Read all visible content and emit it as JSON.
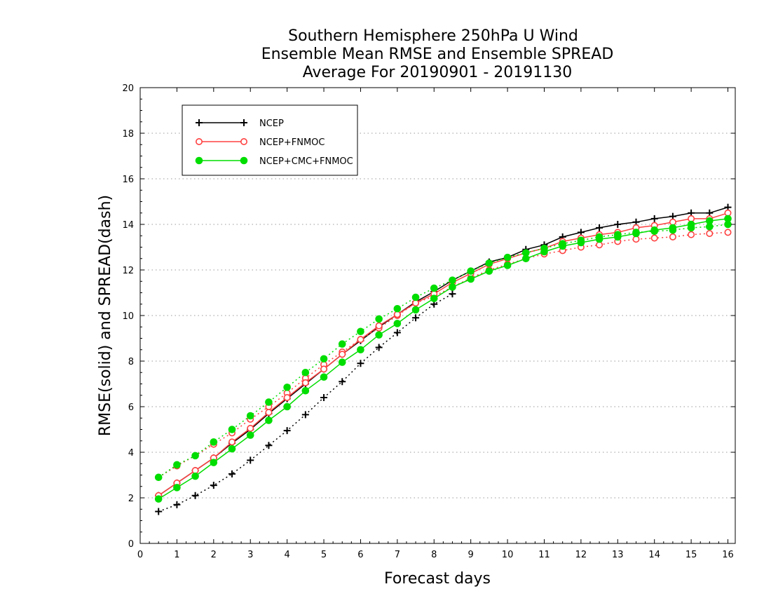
{
  "chart_data": {
    "type": "line",
    "title": [
      "Southern Hemisphere 250hPa U Wind",
      "Ensemble Mean RMSE and Ensemble SPREAD",
      "Average For 20190901 - 20191130"
    ],
    "xlabel": "Forecast days",
    "ylabel": "RMSE(solid) and SPREAD(dash)",
    "xlim": [
      0,
      16.2
    ],
    "ylim": [
      0,
      20
    ],
    "xticks": [
      0,
      1,
      2,
      3,
      4,
      5,
      6,
      7,
      8,
      9,
      10,
      11,
      12,
      13,
      14,
      15,
      16
    ],
    "yticks": [
      0,
      2,
      4,
      6,
      8,
      10,
      12,
      14,
      16,
      18,
      20
    ],
    "grid": "horizontal dotted",
    "legend_position": "top-left",
    "x": [
      0.5,
      1,
      1.5,
      2,
      2.5,
      3,
      3.5,
      4,
      4.5,
      5,
      5.5,
      6,
      6.5,
      7,
      7.5,
      8,
      8.5,
      9,
      9.5,
      10,
      10.5,
      11,
      11.5,
      12,
      12.5,
      13,
      13.5,
      14,
      14.5,
      15,
      15.5,
      16
    ],
    "series": [
      {
        "name": "NCEP",
        "color": "#000000",
        "marker": "plus",
        "rmse": [
          2.1,
          2.65,
          3.2,
          3.75,
          4.4,
          5.0,
          5.7,
          6.35,
          7.0,
          7.65,
          8.3,
          8.9,
          9.5,
          10.05,
          10.6,
          11.05,
          11.55,
          11.95,
          12.35,
          12.55,
          12.9,
          13.1,
          13.45,
          13.65,
          13.85,
          14.0,
          14.1,
          14.25,
          14.35,
          14.5,
          14.5,
          14.75
        ],
        "spread": [
          1.4,
          1.7,
          2.1,
          2.55,
          3.05,
          3.65,
          4.3,
          4.95,
          5.65,
          6.4,
          7.1,
          7.9,
          8.6,
          9.25,
          9.9,
          10.5,
          10.95,
          null,
          null,
          null,
          null,
          null,
          null,
          null,
          null,
          null,
          null,
          null,
          null,
          null,
          null,
          null
        ]
      },
      {
        "name": "NCEP+FNMOC",
        "color": "#ff4040",
        "marker": "open-circle",
        "rmse": [
          2.1,
          2.65,
          3.2,
          3.75,
          4.45,
          5.05,
          5.75,
          6.4,
          7.05,
          7.65,
          8.3,
          8.95,
          9.55,
          10.05,
          10.55,
          10.95,
          11.45,
          11.85,
          12.25,
          12.5,
          12.75,
          12.95,
          13.25,
          13.4,
          13.55,
          13.65,
          13.85,
          13.95,
          14.1,
          14.25,
          14.25,
          14.5
        ],
        "spread": [
          2.9,
          3.4,
          3.85,
          4.35,
          4.85,
          5.45,
          6.0,
          6.6,
          7.25,
          7.85,
          8.4,
          8.95,
          9.45,
          10.0,
          10.55,
          10.85,
          11.25,
          11.65,
          12.0,
          12.25,
          12.5,
          12.7,
          12.85,
          13.0,
          13.1,
          13.25,
          13.35,
          13.4,
          13.45,
          13.55,
          13.6,
          13.65
        ]
      },
      {
        "name": "NCEP+CMC+FNMOC",
        "color": "#00dd00",
        "marker": "filled-circle",
        "rmse": [
          1.95,
          2.45,
          2.95,
          3.55,
          4.15,
          4.75,
          5.4,
          6.0,
          6.7,
          7.3,
          7.95,
          8.5,
          9.15,
          9.65,
          10.25,
          10.75,
          11.25,
          11.6,
          11.95,
          12.2,
          12.5,
          12.8,
          13.05,
          13.2,
          13.35,
          13.45,
          13.6,
          13.75,
          13.85,
          14.0,
          14.15,
          14.25
        ],
        "spread": [
          2.9,
          3.45,
          3.85,
          4.45,
          5.0,
          5.6,
          6.2,
          6.85,
          7.5,
          8.1,
          8.75,
          9.3,
          9.85,
          10.3,
          10.8,
          11.2,
          11.55,
          11.95,
          12.3,
          12.55,
          12.75,
          12.95,
          13.15,
          13.3,
          13.45,
          13.55,
          13.65,
          13.7,
          13.75,
          13.85,
          13.9,
          14.0
        ]
      }
    ]
  }
}
